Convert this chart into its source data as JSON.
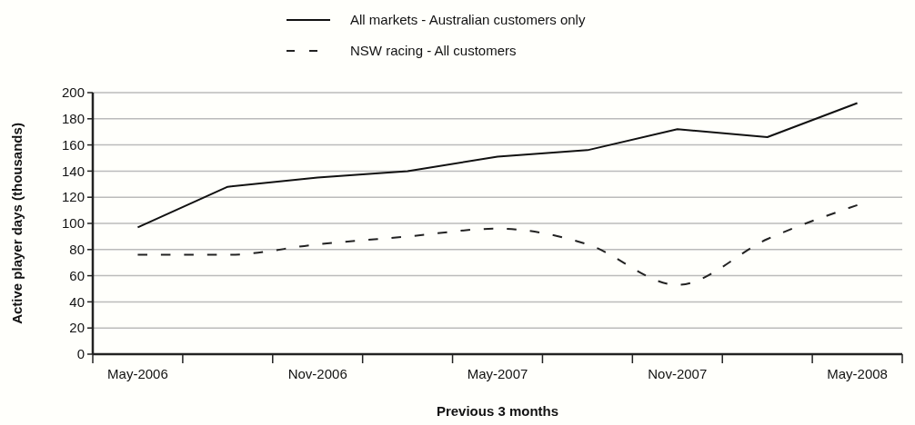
{
  "chart_data": {
    "type": "line",
    "xlabel": "Previous 3 months",
    "ylabel": "Active player days (thousands)",
    "categories": [
      "May-2006",
      null,
      "Nov-2006",
      null,
      "May-2007",
      null,
      "Nov-2007",
      null,
      "May-2008"
    ],
    "series": [
      {
        "name": "All markets - Australian customers only",
        "color": "#111111",
        "line_style": "solid",
        "values": [
          97,
          128,
          135,
          140,
          151,
          156,
          172,
          166,
          192
        ]
      },
      {
        "name": "NSW racing - All customers",
        "color": "#222222",
        "line_style": "dashed",
        "values": [
          76,
          76,
          84,
          90,
          96,
          84,
          53,
          88,
          114
        ]
      }
    ],
    "ylim": [
      0,
      200
    ],
    "yticks": [
      0,
      20,
      40,
      60,
      80,
      100,
      120,
      140,
      160,
      180,
      200
    ],
    "grid": "y",
    "legend": "top",
    "marker": "none"
  }
}
